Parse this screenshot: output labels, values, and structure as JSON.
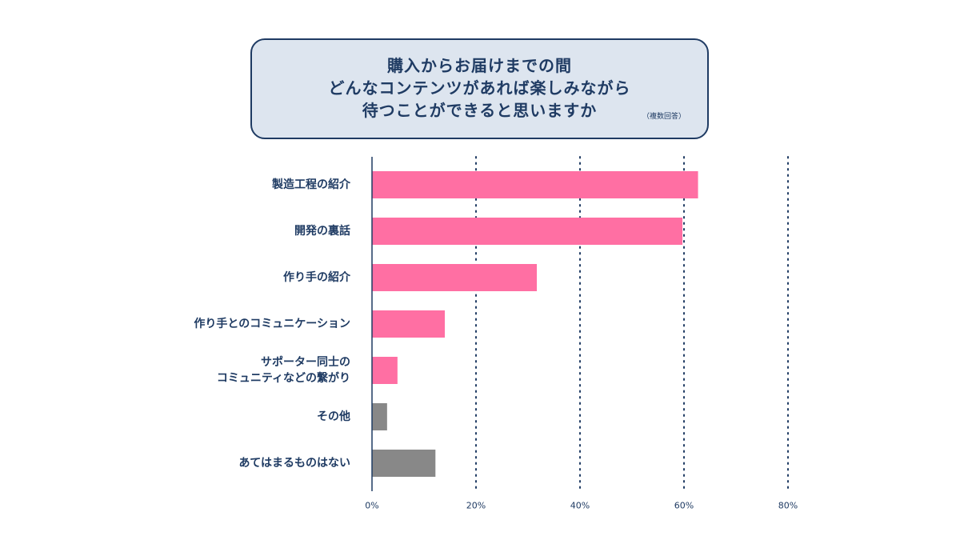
{
  "title": {
    "lines": [
      "購入からお届けまでの間",
      "どんなコンテンツがあれば楽しみながら",
      "待つことができると思いますか"
    ],
    "note": "（複数回答）"
  },
  "colors": {
    "primary_bar": "#ff6fa3",
    "other_bar": "#888888",
    "text": "#1f3b63",
    "title_bg": "#dde5ef"
  },
  "chart_data": {
    "type": "bar",
    "orientation": "horizontal",
    "categories": [
      [
        "製造工程の紹介"
      ],
      [
        "開発の裏話"
      ],
      [
        "作り手の紹介"
      ],
      [
        "作り手とのコミュニケーション"
      ],
      [
        "サポーター同士の",
        "コミュニティなどの繋がり"
      ],
      [
        "その他"
      ],
      [
        "あてはまるものはない"
      ]
    ],
    "values": [
      62.7,
      59.7,
      31.7,
      14.0,
      4.9,
      2.9,
      12.2
    ],
    "bar_colors": [
      "primary",
      "primary",
      "primary",
      "primary",
      "primary",
      "other",
      "other"
    ],
    "xlim": [
      0,
      80
    ],
    "xticks": [
      0,
      20,
      40,
      60,
      80
    ],
    "xtick_labels": [
      "0%",
      "20%",
      "40%",
      "60%",
      "80%"
    ],
    "grid": "vertical-dotted",
    "legend": "none"
  }
}
